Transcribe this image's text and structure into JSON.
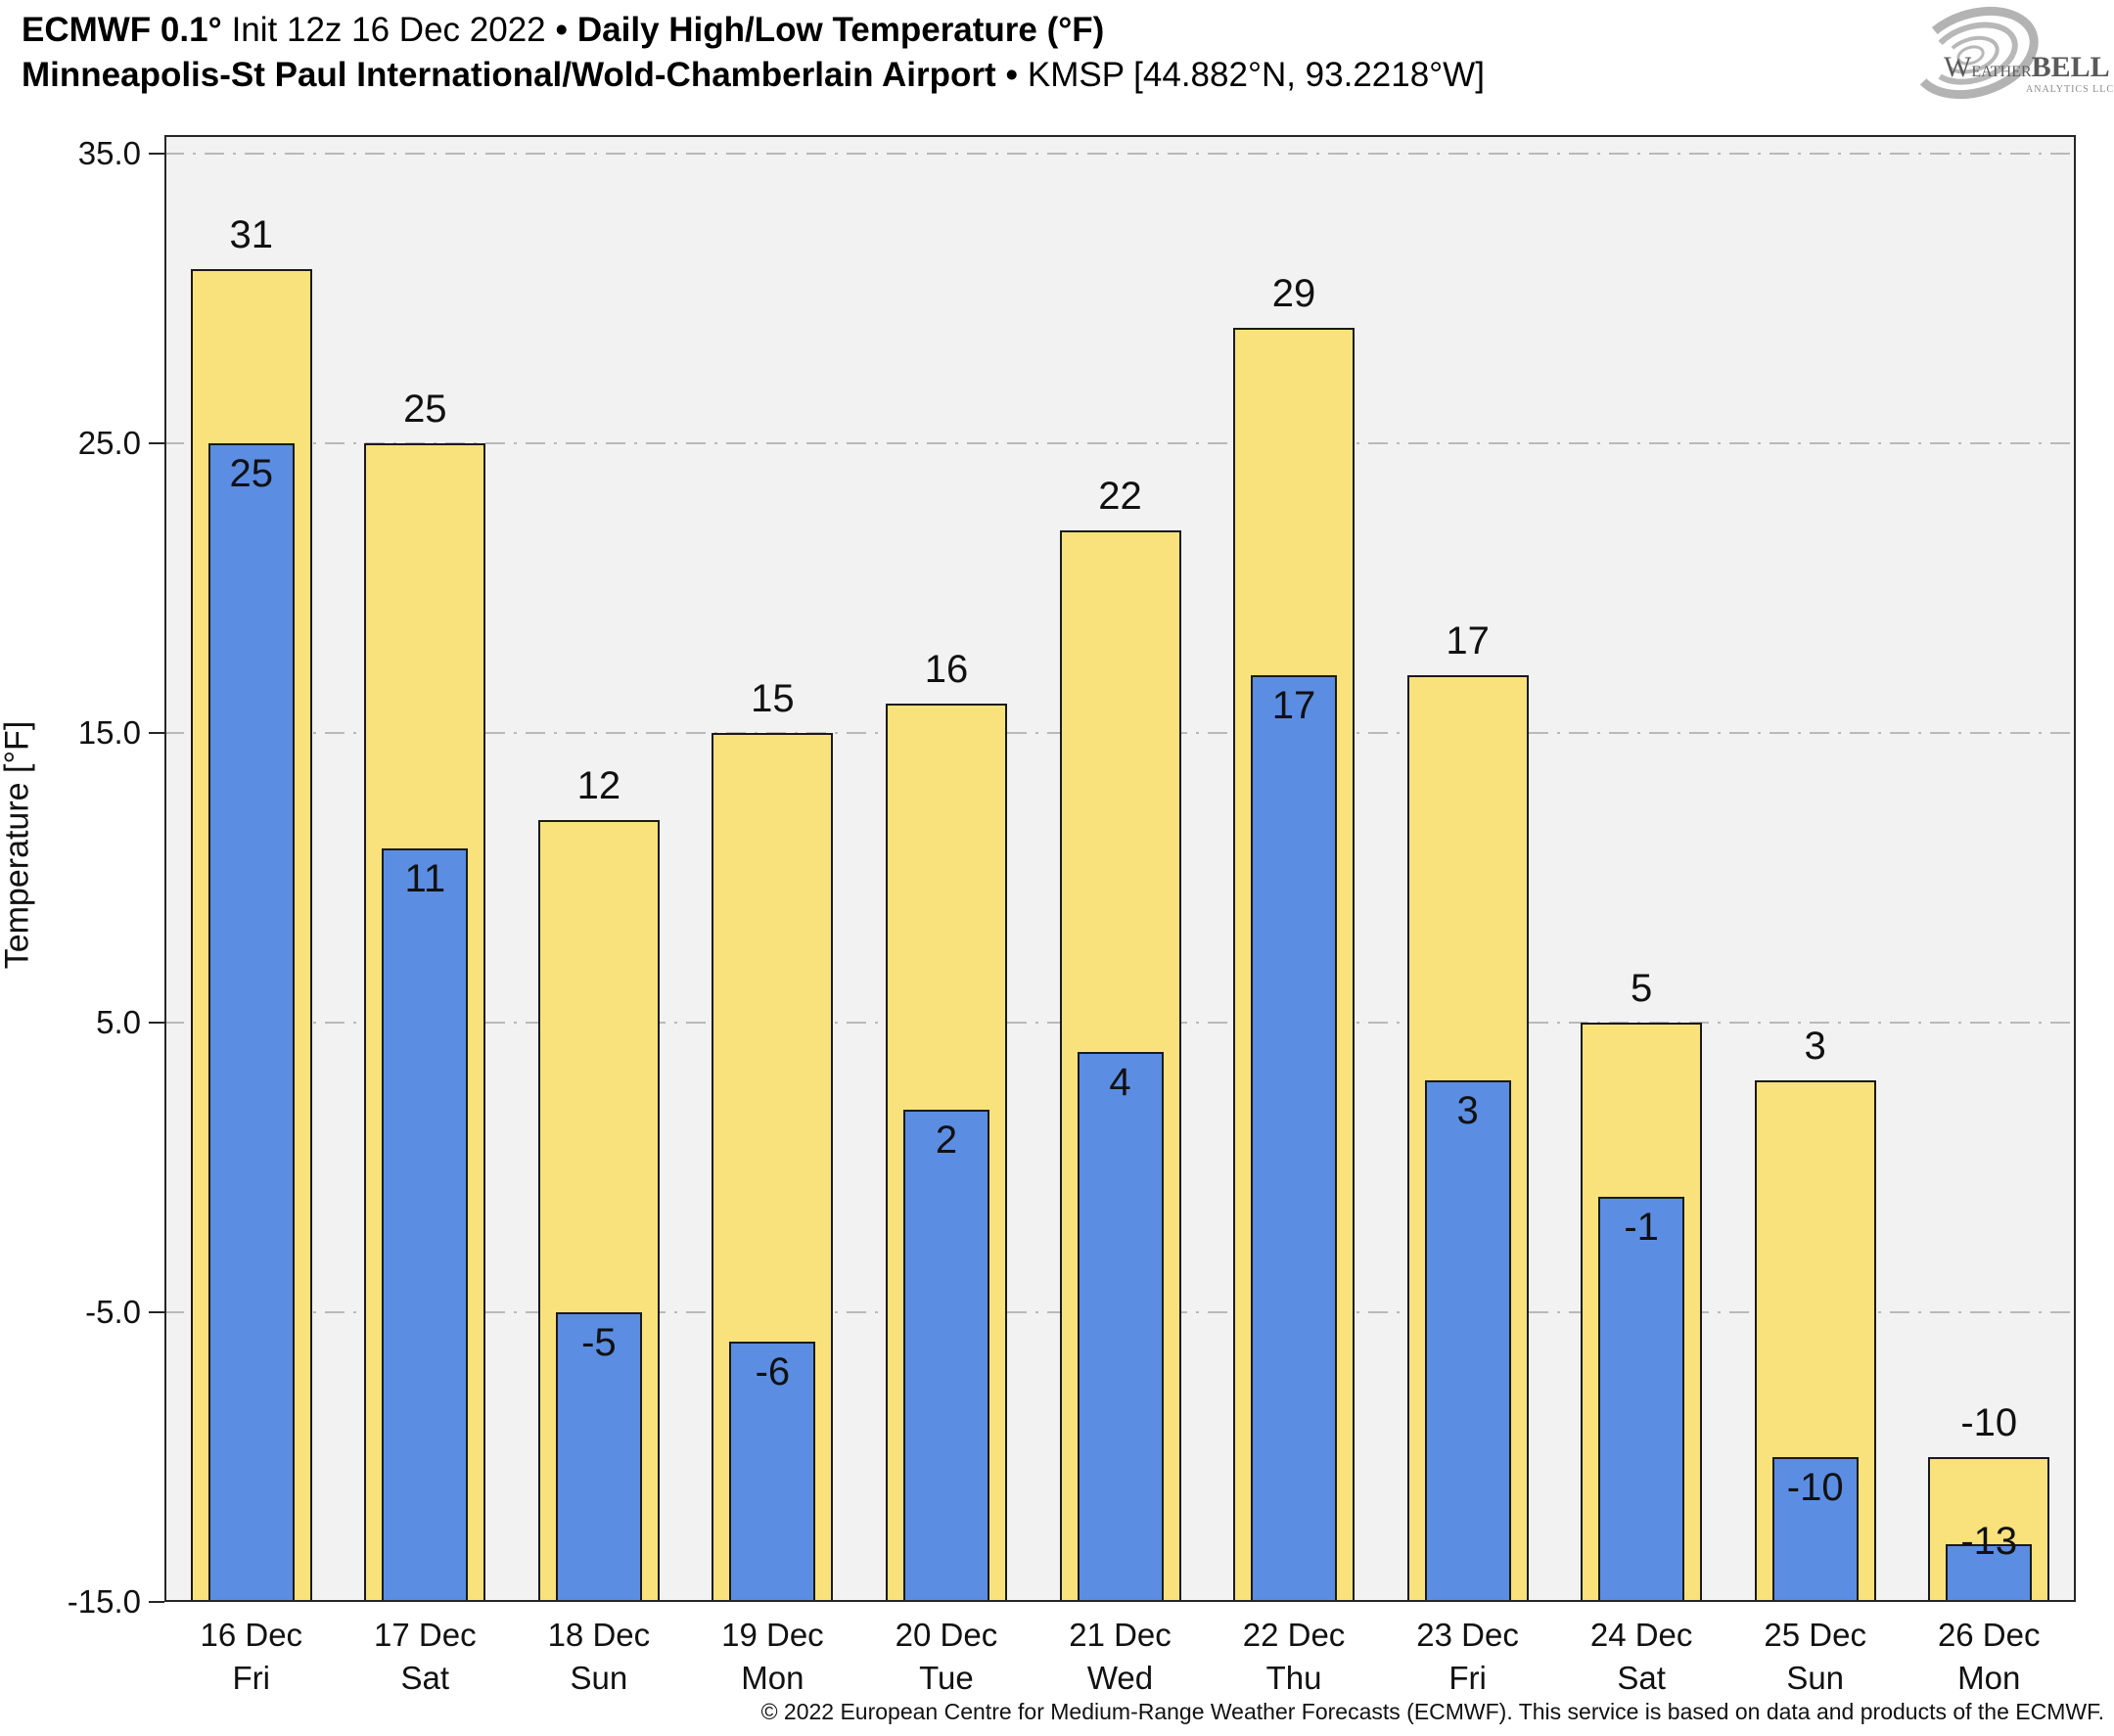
{
  "header": {
    "title_model": "ECMWF 0.1°",
    "title_init": "Init 12z 16 Dec 2022",
    "title_bullet": "•",
    "title_product": "Daily High/Low Temperature (°F)",
    "subtitle_station": "Minneapolis-St Paul International/Wold-Chamberlain Airport",
    "subtitle_bullet": "•",
    "subtitle_id": "KMSP [44.882°N, 93.2218°W]"
  },
  "logo": {
    "brand_w": "W",
    "brand_eather": "EATHER",
    "brand_bell": "BELL",
    "tagline": "Analytics LLC"
  },
  "chart_data": {
    "type": "bar",
    "title": "ECMWF 0.1° Init 12z 16 Dec 2022 • Daily High/Low Temperature (°F)",
    "subtitle": "Minneapolis-St Paul International/Wold-Chamberlain Airport • KMSP [44.882°N, 93.2218°W]",
    "xlabel": "",
    "ylabel": "Temperature [°F]",
    "ylim": [
      -15,
      35.6
    ],
    "yticks": [
      35.0,
      25.0,
      15.0,
      5.0,
      -5.0,
      -15.0
    ],
    "ytick_labels": [
      "35.0",
      "25.0",
      "15.0",
      "5.0",
      "-5.0",
      "-15.0"
    ],
    "grid": true,
    "legend_position": "none",
    "categories": [
      {
        "date": "16 Dec",
        "day": "Fri"
      },
      {
        "date": "17 Dec",
        "day": "Sat"
      },
      {
        "date": "18 Dec",
        "day": "Sun"
      },
      {
        "date": "19 Dec",
        "day": "Mon"
      },
      {
        "date": "20 Dec",
        "day": "Tue"
      },
      {
        "date": "21 Dec",
        "day": "Wed"
      },
      {
        "date": "22 Dec",
        "day": "Thu"
      },
      {
        "date": "23 Dec",
        "day": "Fri"
      },
      {
        "date": "24 Dec",
        "day": "Sat"
      },
      {
        "date": "25 Dec",
        "day": "Sun"
      },
      {
        "date": "26 Dec",
        "day": "Mon"
      }
    ],
    "series": [
      {
        "name": "Daily High",
        "color": "#f9e27b",
        "values": [
          31,
          25,
          12,
          15,
          16,
          22,
          29,
          17,
          5,
          3,
          -10
        ]
      },
      {
        "name": "Daily Low",
        "color": "#5b8de2",
        "values": [
          25,
          11,
          -5,
          -6,
          2,
          4,
          17,
          3,
          -1,
          -10,
          -13
        ]
      }
    ]
  },
  "colors": {
    "high_bar": "#f9e27b",
    "low_bar": "#5b8de2",
    "bar_border": "#1a1a1a",
    "plot_background": "#f2f2f2",
    "gridline": "#b9b9b9",
    "axis": "#262626",
    "logo_gray": "#a6a6a6",
    "logo_text": "#5a5a5a"
  },
  "footer": {
    "copyright": "© 2022 European Centre for Medium-Range Weather Forecasts (ECMWF). This service is based on data and products of the ECMWF."
  }
}
